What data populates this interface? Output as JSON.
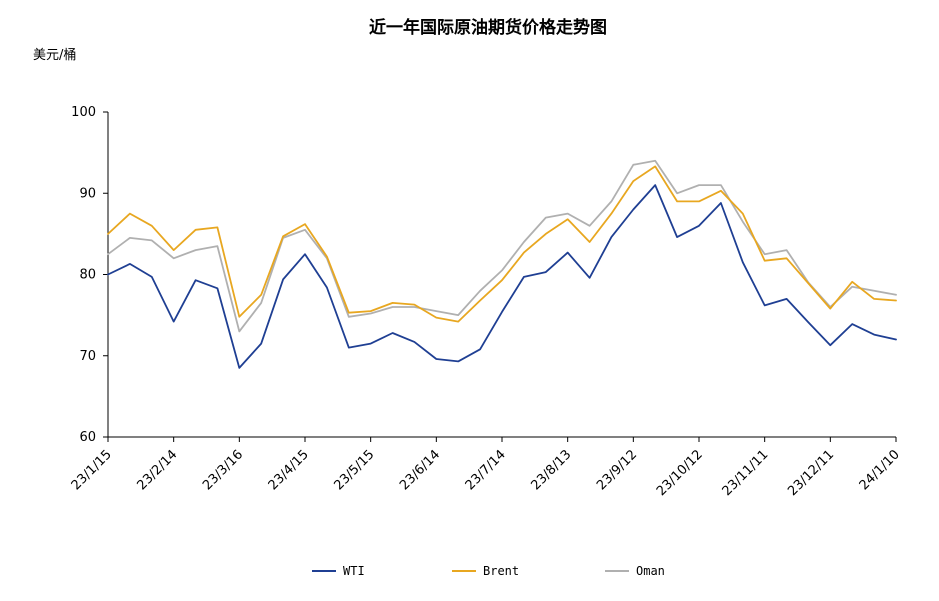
{
  "chart_data": {
    "type": "line",
    "title": "近一年国际原油期货价格走势图",
    "ylabel": "美元/桶",
    "xlabel": "",
    "ylim": [
      60,
      100
    ],
    "yticks": [
      60,
      70,
      80,
      90,
      100
    ],
    "grid": false,
    "legend_position": "bottom",
    "x_tick_labels": [
      "23/1/15",
      "23/2/14",
      "23/3/16",
      "23/4/15",
      "23/5/15",
      "23/6/14",
      "23/7/14",
      "23/8/13",
      "23/9/12",
      "23/10/12",
      "23/11/11",
      "23/12/11",
      "24/1/10"
    ],
    "x": [
      "2023-01-15",
      "2023-01-25",
      "2023-02-04",
      "2023-02-14",
      "2023-02-24",
      "2023-03-06",
      "2023-03-16",
      "2023-03-26",
      "2023-04-05",
      "2023-04-15",
      "2023-04-25",
      "2023-05-05",
      "2023-05-15",
      "2023-05-25",
      "2023-06-04",
      "2023-06-14",
      "2023-06-24",
      "2023-07-04",
      "2023-07-14",
      "2023-07-24",
      "2023-08-03",
      "2023-08-13",
      "2023-08-23",
      "2023-09-02",
      "2023-09-12",
      "2023-09-22",
      "2023-10-02",
      "2023-10-12",
      "2023-10-22",
      "2023-11-01",
      "2023-11-11",
      "2023-11-21",
      "2023-12-01",
      "2023-12-11",
      "2023-12-21",
      "2023-12-31",
      "2024-01-10"
    ],
    "series": [
      {
        "name": "WTI",
        "color": "#1f3f93",
        "values": [
          80.0,
          81.3,
          79.7,
          74.2,
          79.3,
          78.3,
          68.5,
          71.5,
          79.4,
          82.5,
          78.4,
          71.0,
          71.5,
          72.8,
          71.7,
          69.6,
          69.3,
          70.8,
          75.4,
          79.7,
          80.3,
          82.7,
          79.6,
          84.6,
          88.0,
          91.0,
          84.6,
          86.0,
          88.8,
          81.5,
          76.2,
          77.0,
          74.1,
          71.3,
          73.9,
          72.6,
          72.0
        ]
      },
      {
        "name": "Brent",
        "color": "#e8a720",
        "values": [
          85.0,
          87.5,
          86.0,
          83.0,
          85.5,
          85.8,
          74.8,
          77.5,
          84.7,
          86.2,
          82.2,
          75.3,
          75.5,
          76.5,
          76.3,
          74.7,
          74.2,
          76.8,
          79.3,
          82.7,
          85.0,
          86.8,
          84.0,
          87.5,
          91.5,
          93.3,
          89.0,
          89.0,
          90.3,
          87.5,
          81.7,
          82.0,
          78.9,
          75.8,
          79.1,
          77.0,
          76.8
        ]
      },
      {
        "name": "Oman",
        "color": "#b0b0b0",
        "values": [
          82.5,
          84.5,
          84.2,
          82.0,
          83.0,
          83.5,
          73.0,
          76.5,
          84.5,
          85.5,
          82.0,
          74.8,
          75.2,
          76.0,
          76.0,
          75.5,
          75.0,
          78.0,
          80.5,
          84.0,
          87.0,
          87.5,
          86.0,
          89.0,
          93.5,
          94.0,
          90.0,
          91.0,
          91.0,
          86.5,
          82.5,
          83.0,
          79.0,
          76.0,
          78.5,
          78.0,
          77.5
        ]
      }
    ]
  }
}
